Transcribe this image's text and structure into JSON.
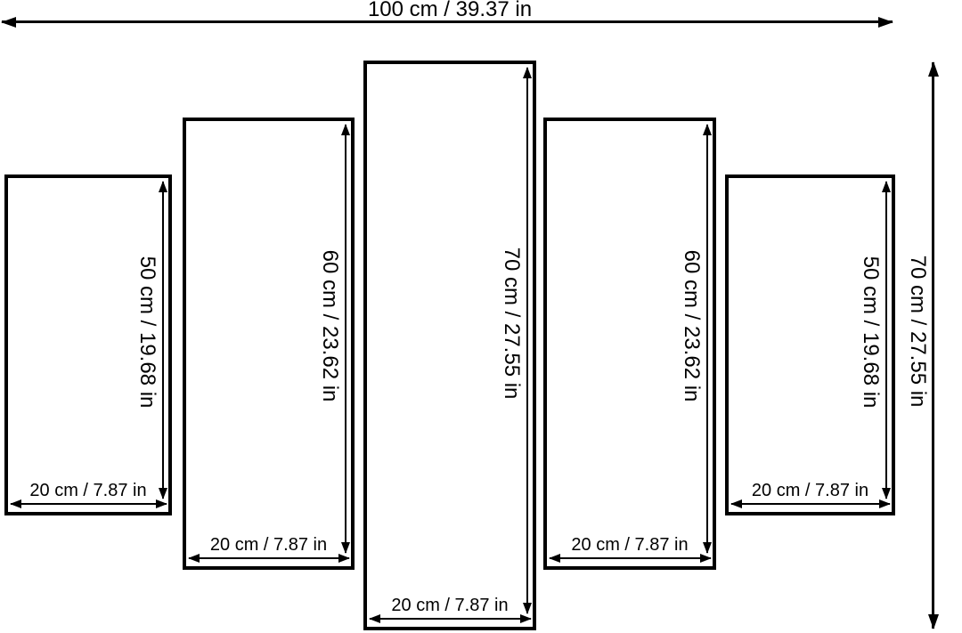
{
  "diagram": {
    "colors": {
      "line": "#000000",
      "background": "#ffffff"
    },
    "overall": {
      "width_label": "100 cm / 39.37 in",
      "height_label": "70 cm / 27.55 in",
      "width_cm": 100,
      "width_in": 39.37,
      "height_cm": 70,
      "height_in": 27.55
    },
    "panels": [
      {
        "height_label": "50 cm / 19.68 in",
        "width_label": "20 cm / 7.87 in",
        "height_cm": 50,
        "height_in": 19.68,
        "width_cm": 20,
        "width_in": 7.87
      },
      {
        "height_label": "60 cm / 23.62 in",
        "width_label": "20 cm / 7.87 in",
        "height_cm": 60,
        "height_in": 23.62,
        "width_cm": 20,
        "width_in": 7.87
      },
      {
        "height_label": "70 cm / 27.55 in",
        "width_label": "20 cm / 7.87 in",
        "height_cm": 70,
        "height_in": 27.55,
        "width_cm": 20,
        "width_in": 7.87
      },
      {
        "height_label": "60 cm / 23.62 in",
        "width_label": "20 cm / 7.87 in",
        "height_cm": 60,
        "height_in": 23.62,
        "width_cm": 20,
        "width_in": 7.87
      },
      {
        "height_label": "50 cm / 19.68 in",
        "width_label": "20 cm / 7.87 in",
        "height_cm": 50,
        "height_in": 19.68,
        "width_cm": 20,
        "width_in": 7.87
      }
    ]
  }
}
